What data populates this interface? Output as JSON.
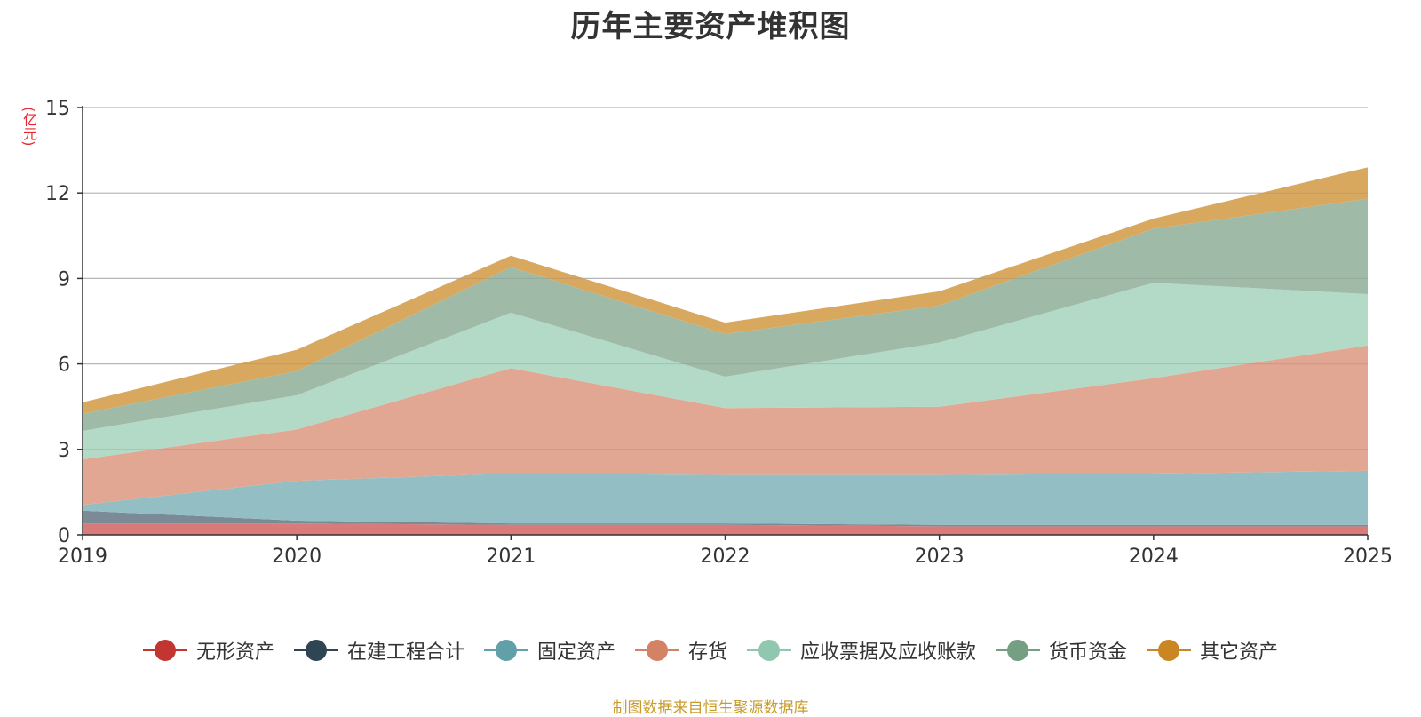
{
  "chart_data": {
    "type": "area",
    "stacked": true,
    "title": "历年主要资产堆积图",
    "unit_label": "(亿元)",
    "x": [
      "2019",
      "2020",
      "2021",
      "2022",
      "2023",
      "2024",
      "2025"
    ],
    "ylim": [
      0,
      15
    ],
    "yticks": [
      0,
      3,
      6,
      9,
      12,
      15
    ],
    "grid": true,
    "legend_position": "bottom",
    "series": [
      {
        "name": "无形资产",
        "color": "#c23531",
        "fill": "#d97b78",
        "values": [
          0.4,
          0.4,
          0.35,
          0.35,
          0.3,
          0.3,
          0.3
        ]
      },
      {
        "name": "在建工程合计",
        "color": "#2f4554",
        "fill": "#7a8a96",
        "values": [
          0.45,
          0.1,
          0.05,
          0.05,
          0.05,
          0.05,
          0.05
        ]
      },
      {
        "name": "固定资产",
        "color": "#61a0a8",
        "fill": "#93bec4",
        "values": [
          0.2,
          1.4,
          1.75,
          1.7,
          1.75,
          1.8,
          1.9
        ]
      },
      {
        "name": "存货",
        "color": "#d48265",
        "fill": "#e1a792",
        "values": [
          1.6,
          1.8,
          3.7,
          2.35,
          2.4,
          3.35,
          4.4
        ]
      },
      {
        "name": "应收票据及应收账款",
        "color": "#91c7ae",
        "fill": "#b3d9c7",
        "values": [
          1.0,
          1.2,
          1.95,
          1.1,
          2.25,
          3.35,
          1.8
        ]
      },
      {
        "name": "货币资金",
        "color": "#749f83",
        "fill": "#9fbba7",
        "values": [
          0.6,
          0.85,
          1.6,
          1.5,
          1.3,
          1.9,
          3.35
        ]
      },
      {
        "name": "其它资产",
        "color": "#ca8622",
        "fill": "#d9a85f",
        "values": [
          0.4,
          0.75,
          0.4,
          0.4,
          0.5,
          0.35,
          1.1
        ]
      }
    ]
  },
  "source_note": "制图数据来自恒生聚源数据库"
}
